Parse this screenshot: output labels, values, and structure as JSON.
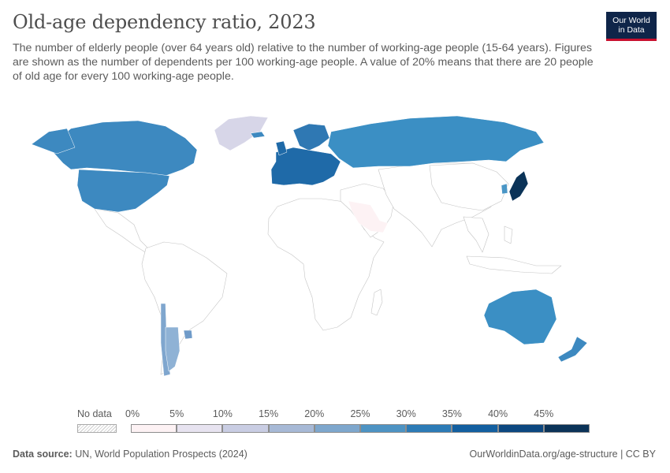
{
  "title": "Old-age dependency ratio, 2023",
  "subtitle": "The number of elderly people (over 64 years old) relative to the number of working-age people (15-64 years). Figures are shown as the number of dependents per 100 working-age people. A value of 20% means that there are 20 people of old age for every 100 working-age people.",
  "logo": {
    "line1": "Our World",
    "line2": "in Data"
  },
  "legend": {
    "no_data_label": "No data",
    "ticks": [
      "0%",
      "5%",
      "10%",
      "15%",
      "20%",
      "25%",
      "30%",
      "35%",
      "40%",
      "45%"
    ],
    "colors": [
      "#fdf2f4",
      "#e7e3f0",
      "#c9cde3",
      "#a7b9d6",
      "#7ea7cd",
      "#4d93c3",
      "#2c7bb6",
      "#135fa0",
      "#0c4780",
      "#0b3358"
    ]
  },
  "footer": {
    "source_label": "Data source:",
    "source_text": " UN, World Population Prospects (2024)",
    "right_text": "OurWorldinData.org/age-structure | CC BY"
  },
  "regions": {
    "north_america": "#3d89c0",
    "greenland": "#d7d6e8",
    "russia": "#3b8fc4",
    "western_europe": "#1f6aa8",
    "nordic": "#2f78b3",
    "japan": "#0b3358",
    "korea": "#4a96c6",
    "australia": "#3b8fc4",
    "new_zealand": "#3d89c0",
    "chile": "#7fa6ce",
    "argentina": "#8fb2d5",
    "uruguay": "#6f9bc9",
    "gulf": "#fdf2f4",
    "no_data": "#ffffff"
  }
}
